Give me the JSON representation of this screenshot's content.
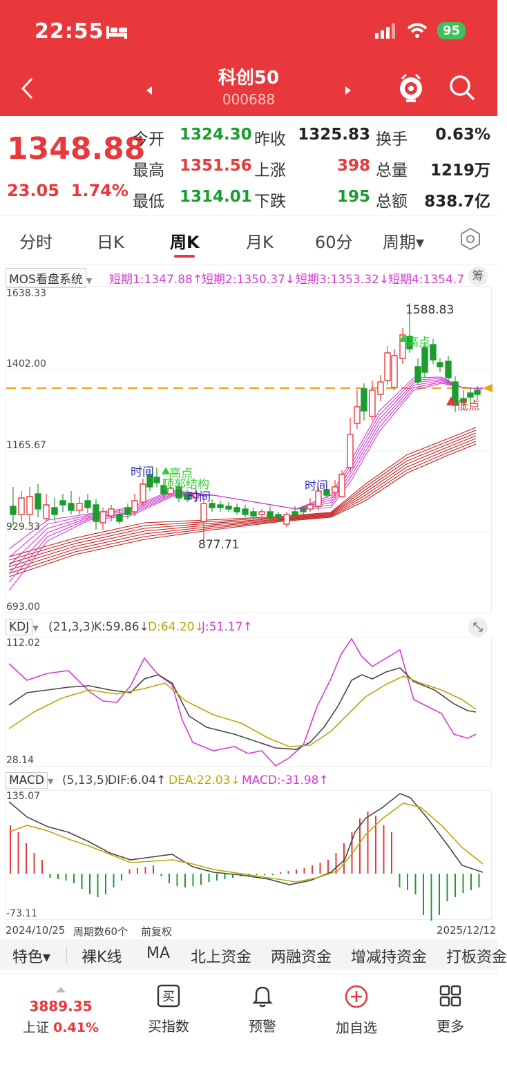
{
  "status_bar": {
    "time": "22:55",
    "battery": "95"
  },
  "nav": {
    "title": "科创50",
    "code": "000688"
  },
  "quote": {
    "price": "1348.88",
    "change": "23.05",
    "change_pct": "1.74%",
    "fields": [
      {
        "label": "今开",
        "value": "1324.30",
        "color": "green"
      },
      {
        "label": "昨收",
        "value": "1325.83",
        "color": "black"
      },
      {
        "label": "换手",
        "value": "0.63%",
        "color": "black"
      },
      {
        "label": "最高",
        "value": "1351.56",
        "color": "red"
      },
      {
        "label": "上涨",
        "value": "398",
        "color": "red"
      },
      {
        "label": "总量",
        "value": "1219万",
        "color": "black"
      },
      {
        "label": "最低",
        "value": "1314.01",
        "color": "green"
      },
      {
        "label": "下跌",
        "value": "195",
        "color": "green"
      },
      {
        "label": "总额",
        "value": "838.7亿",
        "color": "black"
      }
    ]
  },
  "tabs": [
    "分时",
    "日K",
    "周K",
    "月K",
    "60分",
    "周期▾"
  ],
  "active_tab": "周K",
  "main_indicator": {
    "system": "MOS看盘系统",
    "lines": [
      "短期1:1347.88↑",
      "短期2:1350.37↓",
      "短期3:1353.32↓",
      "短期4:1354.7"
    ],
    "button": "筹",
    "y_labels": [
      "1638.33",
      "1402.00",
      "1165.67",
      "929.33",
      "693.00"
    ],
    "annotations": {
      "high_label": "1588.83",
      "low_label": "877.71",
      "time1": "时间",
      "high1": "高点",
      "top_struct": "顶部结构",
      "time2": "时间",
      "time3": "时间",
      "high2": "高点",
      "low_point": "低点"
    }
  },
  "kdj": {
    "name": "KDJ",
    "params": "(21,3,3)",
    "k": "K:59.86↓",
    "d": "D:64.20↓",
    "j": "J:51.17↑",
    "y_max": "112.02",
    "y_min": "28.14"
  },
  "macd": {
    "name": "MACD",
    "params": "(5,13,5)",
    "dif": "DIF:6.04↑",
    "dea": "DEA:22.03↓",
    "macd": "MACD:-31.98↑",
    "y_max": "135.07",
    "y_min": "-73.11"
  },
  "date_strip": {
    "start": "2024/10/25",
    "count": "周期数60个",
    "adj": "前复权",
    "end": "2025/12/12"
  },
  "feature_bar": [
    "特色▾",
    "裸K线",
    "MA",
    "北上资金",
    "两融资金",
    "增减持资金",
    "打板资金"
  ],
  "bottom_nav": {
    "index_value": "3889.35",
    "index_name": "上证",
    "index_pct": "0.41%",
    "items": [
      "买指数",
      "预警",
      "加自选",
      "更多"
    ]
  },
  "colors": {
    "brand_red": "#e8383b",
    "up": "#e8383b",
    "down": "#1a9c2e",
    "magenta": "#d43ad4",
    "dark_red": "#b81d1d",
    "gold": "#e8a317"
  }
}
